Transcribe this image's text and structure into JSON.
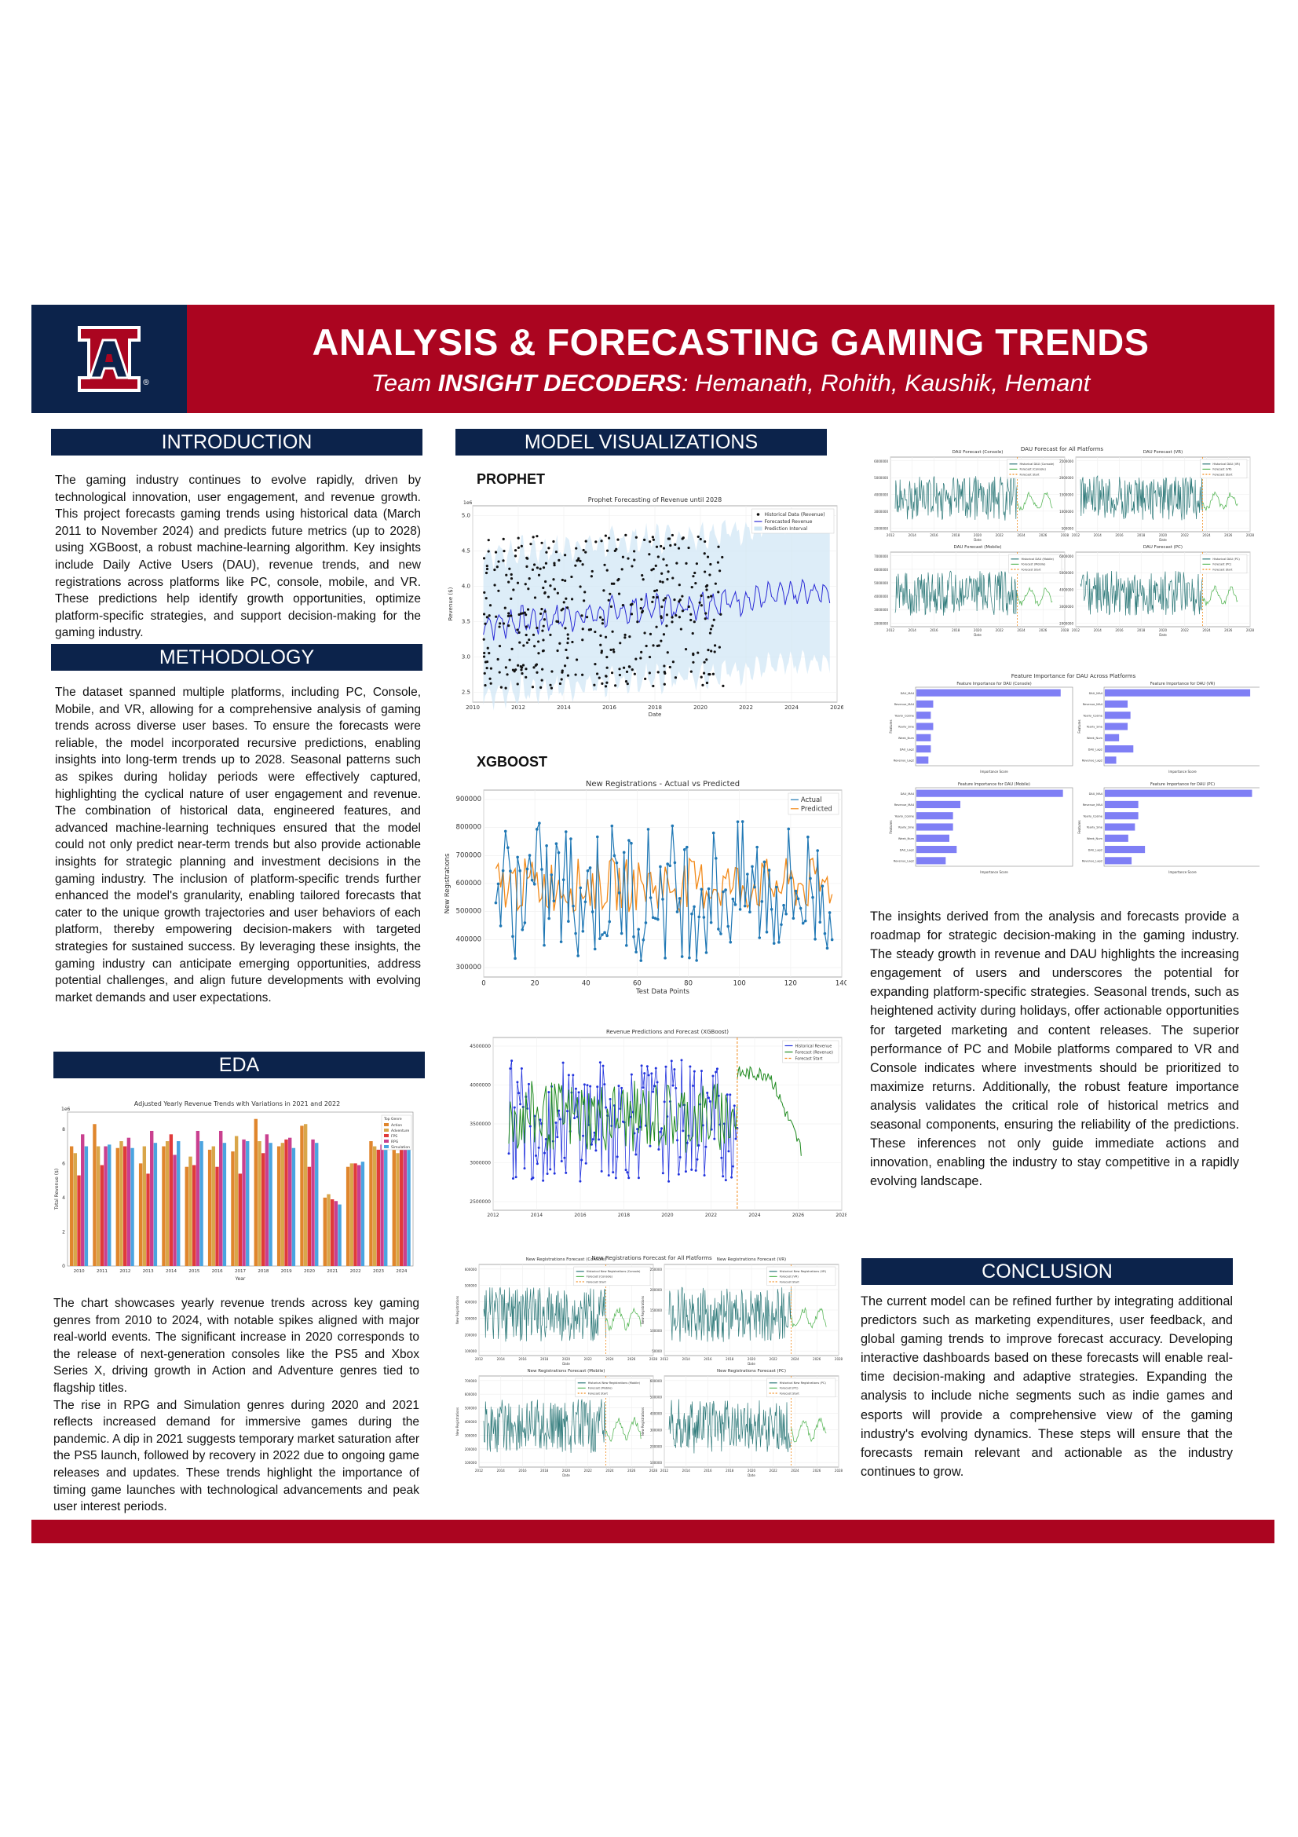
{
  "header": {
    "title": "ANALYSIS & FORECASTING GAMING TRENDS",
    "team_prefix": "Team ",
    "team_name": "INSIGHT DECODERS",
    "members": ": Hemanath, Rohith, Kaushik, Hemant",
    "logo_letter": "A",
    "logo_mark": "®"
  },
  "colors": {
    "navy": "#0c234b",
    "red": "#ab0520"
  },
  "sections": {
    "introduction": "INTRODUCTION",
    "methodology": "METHODOLOGY",
    "eda": "EDA",
    "model_visualizations": "MODEL VISUALIZATIONS",
    "conclusion": "CONCLUSION"
  },
  "text": {
    "introduction": "The gaming industry continues to evolve rapidly, driven by technological innovation, user engagement, and revenue growth. This project forecasts gaming trends using historical data (March 2011 to November 2024) and predicts future metrics (up to 2028) using XGBoost, a robust machine-learning algorithm. Key insights include Daily Active Users (DAU), revenue trends, and new registrations across platforms like PC, console, mobile, and VR. These predictions help identify growth opportunities, optimize platform-specific strategies, and support decision-making for the gaming industry.",
    "methodology": "The dataset spanned multiple platforms, including PC, Console, Mobile, and VR, allowing for a comprehensive analysis of gaming trends across diverse user bases. To ensure the forecasts were reliable, the model incorporated recursive predictions, enabling insights into long-term trends up to 2028. Seasonal patterns such as spikes during holiday periods were effectively captured, highlighting the cyclical nature of user engagement and revenue. The combination of historical data, engineered features, and advanced machine-learning techniques ensured that the model could not only predict near-term trends but also provide actionable insights for strategic planning and investment decisions in the gaming industry. The inclusion of platform-specific trends further enhanced the model's granularity, enabling tailored forecasts that cater to the unique growth trajectories and user behaviors of each platform, thereby empowering decision-makers with targeted strategies for sustained success. By leveraging these insights, the gaming industry can anticipate emerging opportunities, address potential challenges, and align future developments with evolving market demands and user expectations.",
    "eda_p1": "The chart showcases yearly revenue trends across key gaming genres from 2010 to 2024, with notable spikes aligned with major real-world events. The significant increase in 2020 corresponds to the release of next-generation consoles like the PS5 and Xbox Series X, driving growth in Action and Adventure genres tied to flagship titles.",
    "eda_p2": "The rise in RPG and Simulation genres during 2020 and 2021 reflects increased demand for immersive games during the pandemic. A dip in 2021 suggests temporary market saturation after the PS5 launch, followed by recovery in 2022 due to ongoing game releases and updates. These trends highlight the importance of timing game launches with technological advancements and peak user interest periods.",
    "insights": "The insights derived from the analysis and forecasts provide a roadmap for strategic decision-making in the gaming industry. The steady growth in revenue and DAU highlights the increasing engagement of users and underscores the potential for expanding platform-specific strategies. Seasonal trends, such as heightened activity during holidays, offer actionable opportunities for targeted marketing and content releases. The superior performance of PC and Mobile platforms compared to VR and Console indicates where investments should be prioritized to maximize returns. Additionally, the robust feature importance analysis validates the critical role of historical metrics and seasonal components, ensuring the reliability of the predictions. These inferences not only guide immediate actions and innovation, enabling the industry to stay competitive in a rapidly evolving landscape.",
    "conclusion": "The current model can be refined further by integrating additional predictors such as marketing expenditures, user feedback, and global gaming trends to improve forecast accuracy. Developing interactive dashboards based on these forecasts will enable real-time decision-making and adaptive strategies. Expanding the analysis to include niche segments such as indie games and esports will provide a comprehensive view of the gaming industry's evolving dynamics. These steps will ensure that the forecasts remain relevant and actionable as the industry continues to grow."
  },
  "labels": {
    "prophet": "PROPHET",
    "xgboost": "XGBOOST"
  },
  "chart_data": [
    {
      "id": "eda",
      "type": "bar",
      "title": "Adjusted Yearly Revenue Trends with Variations in 2021 and 2022",
      "xlabel": "Year",
      "ylabel": "Total Revenue ($)",
      "scale_note": "1e6",
      "legend_title": "Top Genre",
      "legend_position": "top-right",
      "ylim": [
        0,
        9
      ],
      "categories": [
        "2010",
        "2011",
        "2012",
        "2013",
        "2014",
        "2015",
        "2016",
        "2017",
        "2018",
        "2019",
        "2020",
        "2021",
        "2022",
        "2023",
        "2024"
      ],
      "series": [
        {
          "name": "Action",
          "color": "#e0862d",
          "values": [
            7.0,
            8.3,
            6.9,
            6.0,
            7.0,
            5.8,
            6.8,
            6.7,
            8.6,
            7.0,
            8.2,
            4.0,
            5.8,
            7.3,
            6.9
          ]
        },
        {
          "name": "Adventure",
          "color": "#d9a64a",
          "values": [
            6.6,
            7.0,
            7.3,
            7.0,
            7.3,
            6.4,
            7.0,
            7.6,
            7.3,
            7.2,
            8.3,
            4.2,
            6.0,
            7.0,
            6.6
          ]
        },
        {
          "name": "FPS",
          "color": "#e03a3a",
          "values": [
            5.3,
            5.9,
            7.0,
            5.4,
            7.7,
            5.9,
            5.8,
            5.4,
            6.6,
            7.4,
            5.8,
            3.9,
            6.0,
            6.8,
            7.0
          ]
        },
        {
          "name": "RPG",
          "color": "#c9408f",
          "values": [
            7.7,
            7.0,
            7.5,
            7.9,
            6.5,
            7.9,
            7.9,
            7.4,
            7.7,
            7.5,
            7.4,
            3.8,
            5.9,
            7.1,
            7.3
          ]
        },
        {
          "name": "Simulation",
          "color": "#4aa4e0",
          "values": [
            7.0,
            7.1,
            6.9,
            7.2,
            7.3,
            7.3,
            7.2,
            7.3,
            7.2,
            6.9,
            7.2,
            3.6,
            6.1,
            7.3,
            7.4
          ]
        }
      ]
    },
    {
      "id": "prophet",
      "type": "line",
      "title": "Prophet Forecasting of Revenue until 2028",
      "xlabel": "Date",
      "ylabel": "Revenue ($)",
      "scale_note": "1e6",
      "xlim": [
        2009.5,
        2026.5
      ],
      "ylim": [
        2.4,
        5.2
      ],
      "xticks": [
        "2010",
        "2012",
        "2014",
        "2016",
        "2018",
        "2020",
        "2022",
        "2024",
        "2026"
      ],
      "yticks": [
        "2.5",
        "3.0",
        "3.5",
        "4.0",
        "4.5",
        "5.0"
      ],
      "series": [
        {
          "name": "Historical Data (Revenue)"
        },
        {
          "name": "Forecasted Revenue"
        },
        {
          "name": "Prediction Interval"
        }
      ]
    },
    {
      "id": "xgb_registrations",
      "type": "line",
      "title": "New Registrations - Actual vs Predicted",
      "xlabel": "Test Data Points",
      "ylabel": "New Registrations",
      "xlim": [
        -5,
        143
      ],
      "ylim": [
        260000,
        950000
      ],
      "xticks": [
        "0",
        "20",
        "40",
        "60",
        "80",
        "100",
        "120",
        "140"
      ],
      "yticks": [
        "300000",
        "400000",
        "500000",
        "600000",
        "700000",
        "800000",
        "900000"
      ],
      "series": [
        {
          "name": "Actual"
        },
        {
          "name": "Predicted"
        }
      ]
    },
    {
      "id": "xgb_revenue",
      "type": "line",
      "title": "Revenue Predictions and Forecast (XGBoost)",
      "xticks": [
        "2012",
        "2014",
        "2016",
        "2018",
        "2020",
        "2022",
        "2024",
        "2026",
        "2028"
      ],
      "yticks": [
        "2500000",
        "3000000",
        "3500000",
        "4000000",
        "4500000"
      ],
      "ylim": [
        2400000,
        4800000
      ],
      "series": [
        {
          "name": "Historical Revenue"
        },
        {
          "name": "Forecast (Revenue)"
        },
        {
          "name": "Forecast Start"
        }
      ]
    },
    {
      "id": "dau_forecast",
      "type": "line",
      "title": "DAU Forecast for All Platforms",
      "panels": [
        {
          "title": "DAU Forecast (Console)",
          "legend": [
            "Historical DAU (Console)",
            "Forecast (Console)",
            "Forecast Start"
          ],
          "yticks": [
            "2000000",
            "3000000",
            "4000000",
            "5000000",
            "6000000"
          ]
        },
        {
          "title": "DAU Forecast (VR)",
          "legend": [
            "Historical DAU (VR)",
            "Forecast (VR)",
            "Forecast Start"
          ],
          "yticks": [
            "500000",
            "1000000",
            "1500000",
            "2000000",
            "2500000"
          ]
        },
        {
          "title": "DAU Forecast (Mobile)",
          "legend": [
            "Historical DAU (Mobile)",
            "Forecast (Mobile)",
            "Forecast Start"
          ],
          "yticks": [
            "2000000",
            "3000000",
            "4000000",
            "5000000",
            "6000000",
            "7000000"
          ]
        },
        {
          "title": "DAU Forecast (PC)",
          "legend": [
            "Historical DAU (PC)",
            "Forecast (PC)",
            "Forecast Start"
          ],
          "yticks": [
            "2000000",
            "3000000",
            "4000000",
            "5000000",
            "6000000"
          ]
        }
      ],
      "xticks": [
        "2012",
        "2014",
        "2016",
        "2018",
        "2020",
        "2022",
        "2024",
        "2026",
        "2028"
      ],
      "xlabel": "Date"
    },
    {
      "id": "feature_importance",
      "type": "bar",
      "title": "Feature Importance for DAU Across Platforms",
      "features": [
        "DAU_MA4",
        "Revenue_MA4",
        "Yearly_Cosine",
        "Yearly_Sine",
        "Week_Num",
        "DAU_Lag2",
        "Revenue_Lag2"
      ],
      "xlabel": "Importance Score",
      "ylabel": "Features",
      "panels": [
        {
          "title": "Feature Importance for DAU (Console)",
          "values": [
            0.3,
            0.035,
            0.03,
            0.035,
            0.03,
            0.03,
            0.025
          ],
          "xmax": 0.32
        },
        {
          "title": "Feature Importance for DAU (VR)",
          "values": [
            0.51,
            0.08,
            0.09,
            0.08,
            0.05,
            0.1,
            0.04
          ],
          "xmax": 0.54
        },
        {
          "title": "Feature Importance for DAU (Mobile)",
          "values": [
            0.4,
            0.12,
            0.1,
            0.1,
            0.09,
            0.11,
            0.08
          ],
          "xmax": 0.42
        },
        {
          "title": "Feature Importance for DAU (PC)",
          "values": [
            0.44,
            0.1,
            0.1,
            0.09,
            0.07,
            0.12,
            0.08
          ],
          "xmax": 0.46
        }
      ]
    },
    {
      "id": "registrations_forecast",
      "type": "line",
      "title": "New Registrations Forecast for All Platforms",
      "panels": [
        {
          "title": "New Registrations Forecast (Console)",
          "legend": [
            "Historical New Registrations (Console)",
            "Forecast (Console)",
            "Forecast Start"
          ],
          "yticks": [
            "100000",
            "200000",
            "300000",
            "400000",
            "500000",
            "600000"
          ]
        },
        {
          "title": "New Registrations Forecast (VR)",
          "legend": [
            "Historical New Registrations (VR)",
            "Forecast (VR)",
            "Forecast Start"
          ],
          "yticks": [
            "50000",
            "100000",
            "150000",
            "200000",
            "250000"
          ]
        },
        {
          "title": "New Registrations Forecast (Mobile)",
          "legend": [
            "Historical New Registrations (Mobile)",
            "Forecast (Mobile)",
            "Forecast Start"
          ],
          "yticks": [
            "100000",
            "200000",
            "300000",
            "400000",
            "500000",
            "600000",
            "700000"
          ]
        },
        {
          "title": "New Registrations Forecast (PC)",
          "legend": [
            "Historical New Registrations (PC)",
            "Forecast (PC)",
            "Forecast Start"
          ],
          "yticks": [
            "100000",
            "200000",
            "300000",
            "400000",
            "500000",
            "600000"
          ]
        }
      ],
      "xticks": [
        "2012",
        "2014",
        "2016",
        "2018",
        "2020",
        "2022",
        "2024",
        "2026",
        "2028"
      ],
      "xlabel": "Date",
      "ylabel": "New Registrations"
    }
  ]
}
